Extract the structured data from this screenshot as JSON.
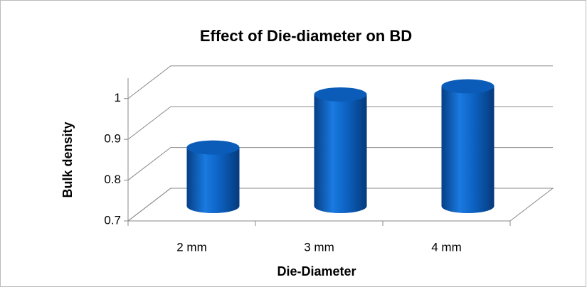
{
  "chart_data": {
    "type": "bar3d",
    "title": "Effect of Die-diameter on BD",
    "x_label": "Die-Diameter",
    "y_label": "Bulk density",
    "categories": [
      "2 mm",
      "3 mm",
      "4 mm"
    ],
    "values": [
      0.84,
      0.97,
      0.99
    ],
    "color": "#0a5cb8",
    "ylim": [
      0.7,
      1.05
    ],
    "yticks": [
      0.7,
      0.8,
      0.9,
      1
    ],
    "grid": true
  }
}
